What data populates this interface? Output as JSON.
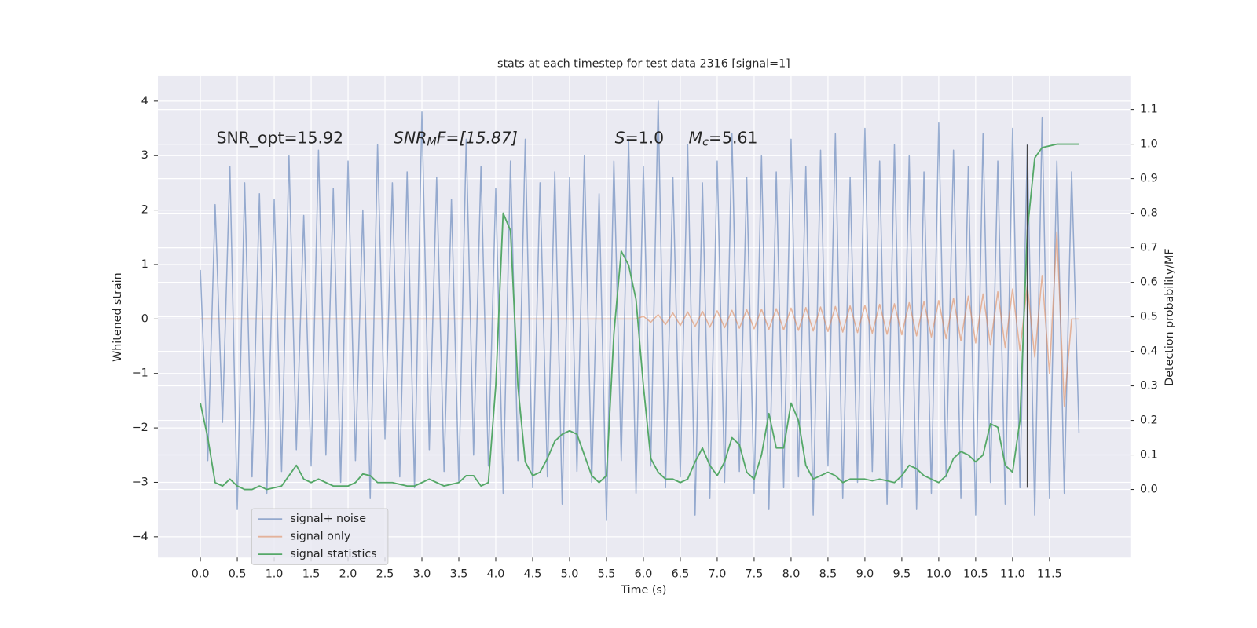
{
  "chart_data": {
    "type": "line",
    "title": "stats at each timestep for test data 2316 [signal=1]",
    "xlabel": "Time (s)",
    "ylabel": "Whitened strain",
    "y2label": "Detection probability/MF",
    "xlim": [
      -0.575,
      12.595
    ],
    "ylim": [
      -4.38,
      4.46
    ],
    "y2lim": [
      -0.197,
      1.197
    ],
    "grid": true,
    "legend": "lower left",
    "xticks": [
      {
        "value": 0,
        "label": "0.0"
      },
      0.5,
      {
        "value": 1,
        "label": "1.0"
      },
      1.5,
      {
        "value": 2,
        "label": "2.0"
      },
      2.5,
      {
        "value": 3,
        "label": "3.0"
      },
      3.5,
      {
        "value": 4,
        "label": "4.0"
      },
      4.5,
      {
        "value": 5,
        "label": "5.0"
      },
      5.5,
      {
        "value": 6,
        "label": "6.0"
      },
      6.5,
      {
        "value": 7,
        "label": "7.0"
      },
      7.5,
      {
        "value": 8,
        "label": "8.0"
      },
      8.5,
      {
        "value": 9,
        "label": "9.0"
      },
      9.5,
      {
        "value": 10,
        "label": "10.0"
      },
      10.5,
      {
        "value": 11,
        "label": "11.0"
      },
      11.5
    ],
    "yticks": [
      {
        "value": -4,
        "label": "−4"
      },
      {
        "value": -3,
        "label": "−3"
      },
      {
        "value": -2,
        "label": "−2"
      },
      {
        "value": -1,
        "label": "−1"
      },
      0,
      1,
      2,
      3,
      4
    ],
    "y2ticks": [
      {
        "value": 0,
        "label": "0.0"
      },
      0.1,
      0.2,
      0.3,
      0.4,
      0.5,
      0.6,
      0.7,
      0.8,
      0.9,
      {
        "value": 1,
        "label": "1.0"
      },
      1.1
    ],
    "annotations": [
      {
        "main": "SNR_opt=15.92"
      },
      {
        "main": "SNR",
        "sub": "M",
        "rest": "F=[15.87]"
      },
      {
        "main": "S",
        "rest": "=1.0"
      },
      {
        "main": "M",
        "sub": "c",
        "rest": "=5.61"
      }
    ],
    "vline": {
      "x": 11.2,
      "ymin": -3.1,
      "ymax": 3.2,
      "color": "#444444"
    },
    "x": [
      0,
      0.1,
      0.2,
      0.3,
      0.4,
      0.5,
      0.6,
      0.7,
      0.8,
      0.9,
      1,
      1.1,
      1.2,
      1.3,
      1.4,
      1.5,
      1.6,
      1.7,
      1.8,
      1.9,
      2,
      2.1,
      2.2,
      2.3,
      2.4,
      2.5,
      2.6,
      2.7,
      2.8,
      2.9,
      3,
      3.1,
      3.2,
      3.3,
      3.4,
      3.5,
      3.6,
      3.7,
      3.8,
      3.9,
      4,
      4.1,
      4.2,
      4.3,
      4.4,
      4.5,
      4.6,
      4.7,
      4.8,
      4.9,
      5,
      5.1,
      5.2,
      5.3,
      5.4,
      5.5,
      5.6,
      5.7,
      5.8,
      5.9,
      6,
      6.1,
      6.2,
      6.3,
      6.4,
      6.5,
      6.6,
      6.7,
      6.8,
      6.9,
      7,
      7.1,
      7.2,
      7.3,
      7.4,
      7.5,
      7.6,
      7.7,
      7.8,
      7.9,
      8,
      8.1,
      8.2,
      8.3,
      8.4,
      8.5,
      8.6,
      8.7,
      8.8,
      8.9,
      9,
      9.1,
      9.2,
      9.3,
      9.4,
      9.5,
      9.6,
      9.7,
      9.8,
      9.9,
      10,
      10.1,
      10.2,
      10.3,
      10.4,
      10.5,
      10.6,
      10.7,
      10.8,
      10.9,
      11,
      11.1,
      11.2,
      11.3,
      11.4,
      11.5,
      11.6,
      11.7,
      11.8,
      11.9
    ],
    "series": [
      {
        "name": "signal+ noise",
        "color": "#4c72b0",
        "values": [
          0.9,
          -2.6,
          2.1,
          -1.9,
          2.8,
          -3.5,
          2.5,
          -2.9,
          2.3,
          -3.2,
          2.2,
          -2.8,
          3.0,
          -2.4,
          1.9,
          -2.7,
          3.1,
          -2.5,
          2.4,
          -3.0,
          2.9,
          -2.6,
          2.0,
          -3.3,
          3.2,
          -2.2,
          2.5,
          -2.9,
          2.7,
          -3.1,
          3.8,
          -2.4,
          2.6,
          -2.8,
          2.2,
          -3.0,
          3.3,
          -2.5,
          2.8,
          -2.7,
          2.4,
          -3.2,
          2.9,
          -2.6,
          3.3,
          -3.1,
          2.5,
          -2.9,
          2.7,
          -3.4,
          2.6,
          -2.8,
          3.0,
          -3.0,
          2.3,
          -3.7,
          2.9,
          -2.6,
          3.3,
          -3.2,
          2.8,
          -2.7,
          4.0,
          -3.1,
          2.6,
          -2.9,
          3.2,
          -3.6,
          2.5,
          -3.3,
          2.9,
          -3.0,
          3.4,
          -2.8,
          2.6,
          -3.2,
          3.0,
          -3.5,
          2.7,
          -3.1,
          3.3,
          -2.9,
          2.8,
          -3.6,
          3.1,
          -2.7,
          3.4,
          -3.3,
          2.6,
          -3.0,
          3.5,
          -2.8,
          2.9,
          -3.4,
          3.2,
          -3.1,
          3.0,
          -3.5,
          2.7,
          -3.2,
          3.6,
          -2.9,
          3.1,
          -3.3,
          2.8,
          -3.6,
          3.4,
          -3.0,
          2.9,
          -3.4,
          3.5,
          -3.1,
          3.2,
          -3.6,
          3.7,
          -3.3,
          2.9,
          -3.2,
          2.7,
          -2.1
        ]
      },
      {
        "name": "signal only",
        "color": "#dd8452",
        "values": [
          0,
          0,
          0,
          0,
          0,
          0,
          0,
          0,
          0,
          0,
          0,
          0,
          0,
          0,
          0,
          0,
          0,
          0,
          0,
          0,
          0,
          0,
          0,
          0,
          0,
          0,
          0,
          0,
          0,
          0,
          0,
          0,
          0,
          0,
          0,
          0,
          0,
          0,
          0,
          0,
          0,
          0,
          0,
          0,
          0,
          0,
          0,
          0,
          0,
          0,
          0,
          0,
          0,
          0,
          0,
          0,
          0,
          0,
          0,
          0,
          0.05,
          -0.06,
          0.08,
          -0.1,
          0.11,
          -0.12,
          0.13,
          -0.14,
          0.14,
          -0.15,
          0.15,
          -0.16,
          0.16,
          -0.17,
          0.17,
          -0.18,
          0.18,
          -0.19,
          0.19,
          -0.2,
          0.2,
          -0.21,
          0.21,
          -0.22,
          0.22,
          -0.23,
          0.23,
          -0.24,
          0.24,
          -0.25,
          0.25,
          -0.26,
          0.27,
          -0.28,
          0.28,
          -0.29,
          0.3,
          -0.31,
          0.32,
          -0.33,
          0.34,
          -0.36,
          0.38,
          -0.4,
          0.42,
          -0.44,
          0.46,
          -0.48,
          0.5,
          -0.52,
          0.55,
          -0.58,
          0.62,
          -0.7,
          0.8,
          -1.0,
          1.6,
          -1.6,
          0,
          0
        ]
      },
      {
        "name": "signal statistics",
        "color": "#55a868",
        "axis": "y2",
        "values": [
          0.25,
          0.15,
          0.02,
          0.01,
          0.03,
          0.01,
          0,
          0,
          0.01,
          0,
          0.005,
          0.01,
          0.04,
          0.07,
          0.03,
          0.02,
          0.03,
          0.02,
          0.01,
          0.01,
          0.01,
          0.02,
          0.045,
          0.04,
          0.02,
          0.02,
          0.02,
          0.015,
          0.01,
          0.01,
          0.02,
          0.03,
          0.02,
          0.01,
          0.015,
          0.02,
          0.04,
          0.04,
          0.01,
          0.02,
          0.3,
          0.8,
          0.75,
          0.3,
          0.08,
          0.04,
          0.05,
          0.09,
          0.14,
          0.16,
          0.17,
          0.16,
          0.1,
          0.04,
          0.02,
          0.04,
          0.45,
          0.69,
          0.65,
          0.55,
          0.3,
          0.09,
          0.05,
          0.03,
          0.03,
          0.02,
          0.03,
          0.08,
          0.12,
          0.07,
          0.04,
          0.08,
          0.15,
          0.13,
          0.05,
          0.03,
          0.1,
          0.22,
          0.12,
          0.12,
          0.25,
          0.2,
          0.07,
          0.03,
          0.04,
          0.05,
          0.04,
          0.02,
          0.03,
          0.03,
          0.03,
          0.025,
          0.03,
          0.025,
          0.02,
          0.04,
          0.07,
          0.06,
          0.04,
          0.03,
          0.02,
          0.04,
          0.09,
          0.11,
          0.1,
          0.08,
          0.1,
          0.19,
          0.18,
          0.07,
          0.05,
          0.2,
          0.75,
          0.96,
          0.99,
          0.995,
          1,
          1,
          1,
          1
        ]
      }
    ]
  }
}
